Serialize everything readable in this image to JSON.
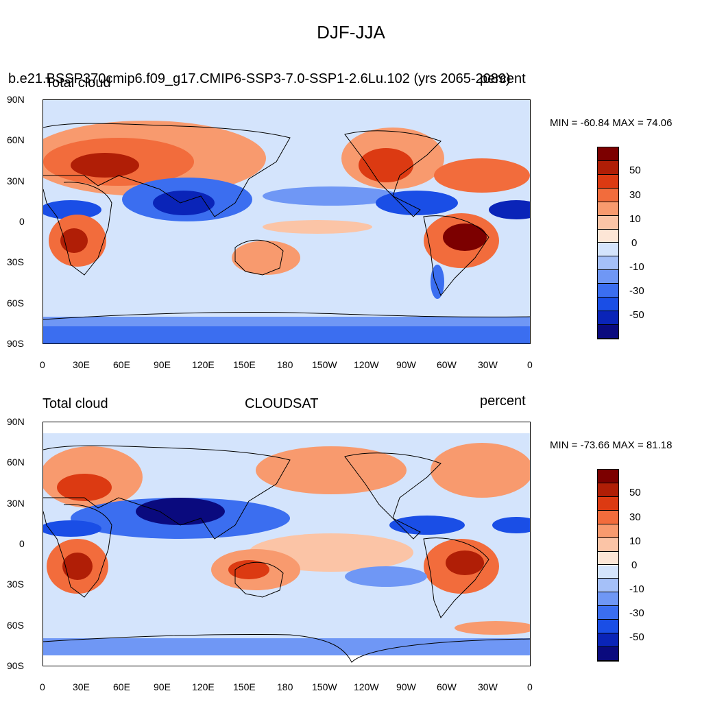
{
  "page_title": "DJF-JJA",
  "panels": [
    {
      "title_left_a": "b.e21.BSSP370cmip6.f09_g17.CMIP6-SSP3-7.0-SSP1-2.6Lu.102 (yrs 2065-2089)",
      "title_left_b": "Total cloud",
      "title_right": "percent",
      "title_center": "",
      "minmax": "MIN = -60.84 MAX =  74.06",
      "colorbar_labels": [
        "50",
        "30",
        "10",
        "0",
        "-10",
        "-30",
        "-50"
      ]
    },
    {
      "title_left_a": "",
      "title_left_b": "Total cloud",
      "title_right": "percent",
      "title_center": "CLOUDSAT",
      "minmax": "MIN = -73.66 MAX =  81.18",
      "colorbar_labels": [
        "50",
        "30",
        "10",
        "0",
        "-10",
        "-30",
        "-50"
      ]
    }
  ],
  "lat_labels": [
    "90N",
    "60N",
    "30N",
    "0",
    "30S",
    "60S",
    "90S"
  ],
  "lon_labels": [
    "0",
    "30E",
    "60E",
    "90E",
    "120E",
    "150E",
    "180",
    "150W",
    "120W",
    "90W",
    "60W",
    "30W",
    "0"
  ],
  "palette": [
    "#0a0a7e",
    "#0a24b8",
    "#1a4ee6",
    "#3b6ef0",
    "#6f97f5",
    "#a5c0f8",
    "#d4e4fc",
    "#fde6d6",
    "#fbc4a6",
    "#f89a6e",
    "#f26c3c",
    "#dc3a12",
    "#b01e06",
    "#7c0000"
  ]
}
